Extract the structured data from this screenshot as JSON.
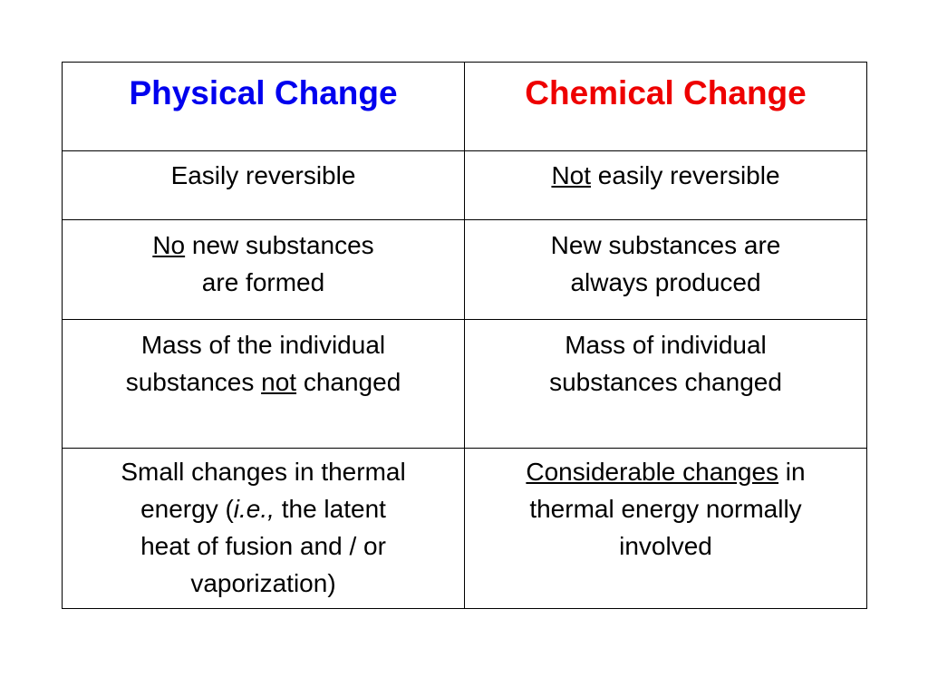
{
  "colors": {
    "physical_header": "#0000ee",
    "chemical_header": "#ee0000",
    "border": "#000000",
    "text": "#000000"
  },
  "table": {
    "headers": {
      "physical": "Physical Change",
      "chemical": "Chemical Change"
    },
    "rows": [
      {
        "physical": {
          "line1": "Easily reversible"
        },
        "chemical": {
          "underlined": "Not",
          "rest": " easily reversible"
        }
      },
      {
        "physical": {
          "underlined": "No",
          "line1_rest": " new substances",
          "line2": "are formed"
        },
        "chemical": {
          "line1": "New substances are",
          "line2": "always produced"
        }
      },
      {
        "physical": {
          "line1": "Mass of the individual",
          "line2_pre": "substances ",
          "underlined": "not",
          "line2_post": " changed"
        },
        "chemical": {
          "line1": "Mass of individual",
          "line2": "substances changed"
        }
      },
      {
        "physical": {
          "line1": "Small changes in thermal",
          "line2_pre": "energy (",
          "italic": "i.e.,",
          "line2_post": " the  latent",
          "line3": "heat of fusion and / or",
          "line4": "vaporization)"
        },
        "chemical": {
          "underlined": "Considerable changes",
          "line1_rest": " in",
          "line2": "thermal energy normally",
          "line3": "involved"
        }
      }
    ]
  }
}
